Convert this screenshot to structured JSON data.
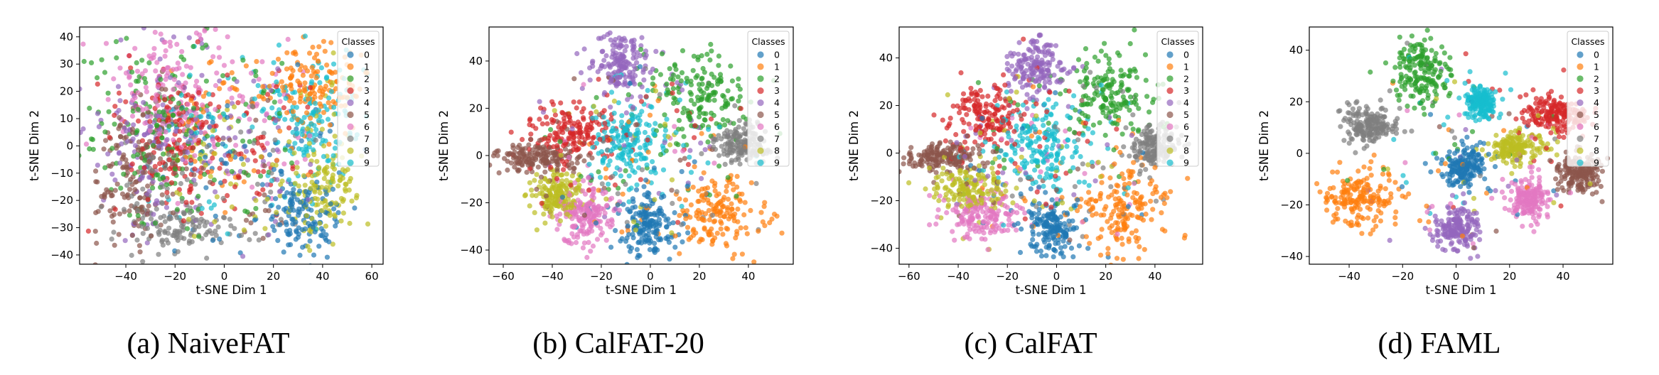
{
  "chart_data": [
    {
      "type": "scatter",
      "caption": "(a) NaiveFAT",
      "xlabel": "t-SNE Dim 1",
      "ylabel": "t-SNE Dim 2",
      "xlim": [
        -58.8,
        64.6
      ],
      "ylim": [
        -43.4,
        43.6
      ],
      "xticks": [
        -40,
        -20,
        0,
        20,
        40,
        60
      ],
      "yticks": [
        -40,
        -30,
        -20,
        -10,
        0,
        10,
        20,
        30,
        40
      ],
      "legend": {
        "title": "Classes",
        "placement": "top-right",
        "entries": [
          "0",
          "1",
          "2",
          "3",
          "4",
          "5",
          "6",
          "7",
          "8",
          "9"
        ]
      },
      "grid": false,
      "clusters": [
        {
          "class": "0",
          "center": [
            30,
            -25
          ],
          "spread": [
            9,
            7
          ]
        },
        {
          "class": "1",
          "center": [
            36,
            22
          ],
          "spread": [
            10,
            7
          ]
        },
        {
          "class": "2",
          "center": [
            -25,
            8
          ],
          "spread": [
            17,
            18
          ]
        },
        {
          "class": "3",
          "center": [
            -18,
            2
          ],
          "spread": [
            15,
            14
          ]
        },
        {
          "class": "4",
          "center": [
            -25,
            5
          ],
          "spread": [
            17,
            18
          ]
        },
        {
          "class": "5",
          "center": [
            -38,
            -12
          ],
          "spread": [
            10,
            12
          ]
        },
        {
          "class": "6",
          "center": [
            -18,
            22
          ],
          "spread": [
            14,
            12
          ]
        },
        {
          "class": "7",
          "center": [
            -20,
            -30
          ],
          "spread": [
            10,
            6
          ]
        },
        {
          "class": "8",
          "center": [
            40,
            -17
          ],
          "spread": [
            8,
            8
          ]
        },
        {
          "class": "9",
          "center": [
            33,
            8
          ],
          "spread": [
            12,
            10
          ]
        }
      ]
    },
    {
      "type": "scatter",
      "caption": "(b) CalFAT-20",
      "xlabel": "t-SNE Dim 1",
      "ylabel": "t-SNE Dim 2",
      "xlim": [
        -65.8,
        58.3
      ],
      "ylim": [
        -46,
        54.4
      ],
      "xticks": [
        -60,
        -40,
        -20,
        0,
        20,
        40
      ],
      "yticks": [
        -40,
        -20,
        0,
        20,
        40
      ],
      "legend": {
        "title": "Classes",
        "placement": "top-right",
        "entries": [
          "0",
          "1",
          "2",
          "3",
          "4",
          "5",
          "6",
          "7",
          "8",
          "9"
        ]
      },
      "grid": false,
      "clusters": [
        {
          "class": "0",
          "center": [
            0,
            -30
          ],
          "spread": [
            6,
            7
          ]
        },
        {
          "class": "1",
          "center": [
            28,
            -25
          ],
          "spread": [
            10,
            9
          ]
        },
        {
          "class": "2",
          "center": [
            22,
            25
          ],
          "spread": [
            10,
            9
          ]
        },
        {
          "class": "3",
          "center": [
            -32,
            10
          ],
          "spread": [
            9,
            6
          ]
        },
        {
          "class": "4",
          "center": [
            -12,
            38
          ],
          "spread": [
            6,
            6
          ]
        },
        {
          "class": "5",
          "center": [
            -48,
            -1
          ],
          "spread": [
            9,
            3
          ]
        },
        {
          "class": "6",
          "center": [
            -26,
            -25
          ],
          "spread": [
            6,
            6
          ]
        },
        {
          "class": "7",
          "center": [
            38,
            5
          ],
          "spread": [
            6,
            4
          ]
        },
        {
          "class": "8",
          "center": [
            -38,
            -17
          ],
          "spread": [
            5,
            5
          ]
        },
        {
          "class": "9",
          "center": [
            -8,
            6
          ],
          "spread": [
            7,
            9
          ]
        }
      ]
    },
    {
      "type": "scatter",
      "caption": "(c) CalFAT",
      "xlabel": "t-SNE Dim 1",
      "ylabel": "t-SNE Dim 2",
      "xlim": [
        -64,
        59.4
      ],
      "ylim": [
        -46.7,
        53
      ],
      "xticks": [
        -60,
        -40,
        -20,
        0,
        20,
        40
      ],
      "yticks": [
        -40,
        -20,
        0,
        20,
        40
      ],
      "legend": {
        "title": "Classes",
        "placement": "top-right",
        "entries": [
          "0",
          "1",
          "2",
          "3",
          "4",
          "5",
          "6",
          "7",
          "8",
          "9"
        ]
      },
      "grid": false,
      "clusters": [
        {
          "class": "0",
          "center": [
            -2,
            -32
          ],
          "spread": [
            5,
            6
          ]
        },
        {
          "class": "1",
          "center": [
            27,
            -24
          ],
          "spread": [
            10,
            9
          ]
        },
        {
          "class": "2",
          "center": [
            22,
            25
          ],
          "spread": [
            10,
            9
          ]
        },
        {
          "class": "3",
          "center": [
            -28,
            15
          ],
          "spread": [
            8,
            7
          ]
        },
        {
          "class": "4",
          "center": [
            -8,
            36
          ],
          "spread": [
            6,
            6
          ]
        },
        {
          "class": "5",
          "center": [
            -47,
            -2
          ],
          "spread": [
            8,
            3
          ]
        },
        {
          "class": "6",
          "center": [
            -30,
            -26
          ],
          "spread": [
            8,
            5
          ]
        },
        {
          "class": "7",
          "center": [
            40,
            3
          ],
          "spread": [
            5,
            4
          ]
        },
        {
          "class": "8",
          "center": [
            -36,
            -15
          ],
          "spread": [
            8,
            5
          ]
        },
        {
          "class": "9",
          "center": [
            -6,
            3
          ],
          "spread": [
            9,
            9
          ]
        }
      ]
    },
    {
      "type": "scatter",
      "caption": "(d) FAML",
      "xlabel": "t-SNE Dim 1",
      "ylabel": "t-SNE Dim 2",
      "xlim": [
        -54.9,
        58.6
      ],
      "ylim": [
        -43,
        49
      ],
      "xticks": [
        -40,
        -20,
        0,
        20,
        40
      ],
      "yticks": [
        -40,
        -20,
        0,
        20,
        40
      ],
      "legend": {
        "title": "Classes",
        "placement": "top-right",
        "entries": [
          "0",
          "1",
          "2",
          "3",
          "4",
          "5",
          "6",
          "7",
          "8",
          "9"
        ]
      },
      "grid": false,
      "clusters": [
        {
          "class": "0",
          "center": [
            3,
            -5
          ],
          "spread": [
            4,
            4
          ]
        },
        {
          "class": "1",
          "center": [
            -36,
            -18
          ],
          "spread": [
            7,
            6
          ]
        },
        {
          "class": "2",
          "center": [
            -13,
            32
          ],
          "spread": [
            5,
            7
          ]
        },
        {
          "class": "3",
          "center": [
            37,
            15
          ],
          "spread": [
            6,
            4
          ]
        },
        {
          "class": "4",
          "center": [
            0,
            -29
          ],
          "spread": [
            4,
            4
          ]
        },
        {
          "class": "5",
          "center": [
            46,
            -8
          ],
          "spread": [
            4,
            4
          ]
        },
        {
          "class": "6",
          "center": [
            27,
            -18
          ],
          "spread": [
            4,
            4
          ]
        },
        {
          "class": "7",
          "center": [
            -33,
            11
          ],
          "spread": [
            5,
            4
          ]
        },
        {
          "class": "8",
          "center": [
            22,
            2
          ],
          "spread": [
            5,
            3
          ]
        },
        {
          "class": "9",
          "center": [
            9,
            20
          ],
          "spread": [
            3,
            3
          ]
        }
      ]
    }
  ],
  "colors": [
    "#1f77b4",
    "#ff7f0e",
    "#2ca02c",
    "#d62728",
    "#9467bd",
    "#8c564b",
    "#e377c2",
    "#7f7f7f",
    "#bcbd22",
    "#17becf"
  ]
}
